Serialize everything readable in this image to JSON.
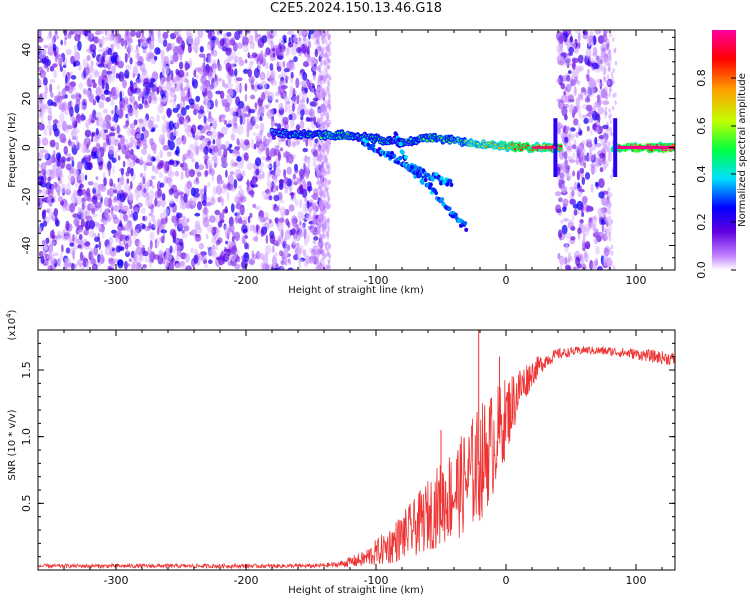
{
  "title": "C2E5.2024.150.13.46.G18",
  "chart_data": [
    {
      "type": "heatmap",
      "xlabel": "Height of straight line (km)",
      "ylabel": "Frequency (Hz)",
      "xlim": [
        -360,
        130
      ],
      "ylim": [
        -50,
        48
      ],
      "x_ticks": [
        -300,
        -200,
        -100,
        0,
        100
      ],
      "y_ticks": [
        -40,
        -20,
        0,
        20,
        40
      ],
      "colorbar": {
        "label": "Normalized spectral amplitude",
        "range": [
          0.0,
          1.0
        ],
        "ticks": [
          0.0,
          0.2,
          0.4,
          0.6,
          0.8
        ],
        "colormap": [
          "#ffffff",
          "#c080ff",
          "#6000e0",
          "#0000ff",
          "#00e0ff",
          "#00ff40",
          "#c0ff00",
          "#ffa000",
          "#ff0000",
          "#ff00a0"
        ]
      },
      "regions": [
        {
          "kind": "noise",
          "x_range": [
            -360,
            -140
          ],
          "freq_range": [
            -50,
            48
          ]
        },
        {
          "kind": "noise",
          "x_range": [
            40,
            80
          ],
          "freq_range": [
            -50,
            48
          ]
        },
        {
          "kind": "signal",
          "x_range": [
            -180,
            130
          ],
          "freq": 0
        }
      ],
      "signal_track": [
        {
          "x": -180,
          "freq": 6,
          "amp": 0.4
        },
        {
          "x": -160,
          "freq": 5.5,
          "amp": 0.48
        },
        {
          "x": -140,
          "freq": 5,
          "amp": 0.52
        },
        {
          "x": -120,
          "freq": 5,
          "amp": 0.55
        },
        {
          "x": -100,
          "freq": 3.5,
          "amp": 0.5
        },
        {
          "x": -80,
          "freq": 2,
          "amp": 0.5
        },
        {
          "x": -60,
          "freq": 4,
          "amp": 0.55
        },
        {
          "x": -40,
          "freq": 3,
          "amp": 0.6
        },
        {
          "x": -20,
          "freq": 1.5,
          "amp": 0.75
        },
        {
          "x": 0,
          "freq": 0.5,
          "amp": 0.85
        },
        {
          "x": 20,
          "freq": 0,
          "amp": 0.95
        },
        {
          "x": 38,
          "freq": 0,
          "amp": 0.9
        },
        {
          "x": 85,
          "freq": 0,
          "amp": 0.98
        },
        {
          "x": 130,
          "freq": 0,
          "amp": 0.98
        }
      ],
      "secondary_tracks": [
        [
          {
            "x": -110,
            "freq": 2
          },
          {
            "x": -90,
            "freq": -3
          },
          {
            "x": -70,
            "freq": -9
          },
          {
            "x": -55,
            "freq": -12
          },
          {
            "x": -42,
            "freq": -15
          }
        ],
        [
          {
            "x": -85,
            "freq": 6
          },
          {
            "x": -75,
            "freq": -8
          },
          {
            "x": -60,
            "freq": -15
          },
          {
            "x": -45,
            "freq": -25
          },
          {
            "x": -30,
            "freq": -33
          }
        ]
      ]
    },
    {
      "type": "line",
      "xlabel": "Height of straight line (km)",
      "ylabel": "SNR (10 * v/v)",
      "y_scale_note": "(x10",
      "y_scale_exp": "4",
      "y_scale_close": ")",
      "xlim": [
        -360,
        130
      ],
      "ylim": [
        0,
        1.8
      ],
      "x_ticks": [
        -300,
        -200,
        -100,
        0,
        100
      ],
      "y_ticks": [
        0.5,
        1.0,
        1.5
      ],
      "y_tick_labels": [
        "0.5",
        "1.0",
        "1.5"
      ],
      "color": "#ee3333",
      "series": [
        {
          "envelope": [
            {
              "x": -360,
              "mean": 0.03,
              "spread": 0.015
            },
            {
              "x": -300,
              "mean": 0.03,
              "spread": 0.015
            },
            {
              "x": -200,
              "mean": 0.03,
              "spread": 0.015
            },
            {
              "x": -150,
              "mean": 0.03,
              "spread": 0.015
            },
            {
              "x": -130,
              "mean": 0.04,
              "spread": 0.02
            },
            {
              "x": -110,
              "mean": 0.08,
              "spread": 0.06
            },
            {
              "x": -90,
              "mean": 0.18,
              "spread": 0.14
            },
            {
              "x": -70,
              "mean": 0.32,
              "spread": 0.22
            },
            {
              "x": -50,
              "mean": 0.5,
              "spread": 0.32
            },
            {
              "x": -35,
              "mean": 0.62,
              "spread": 0.38
            },
            {
              "x": -20,
              "mean": 0.8,
              "spread": 0.45
            },
            {
              "x": -10,
              "mean": 0.95,
              "spread": 0.4
            },
            {
              "x": 0,
              "mean": 1.15,
              "spread": 0.3
            },
            {
              "x": 10,
              "mean": 1.35,
              "spread": 0.18
            },
            {
              "x": 20,
              "mean": 1.48,
              "spread": 0.1
            },
            {
              "x": 30,
              "mean": 1.57,
              "spread": 0.06
            },
            {
              "x": 40,
              "mean": 1.62,
              "spread": 0.04
            },
            {
              "x": 60,
              "mean": 1.65,
              "spread": 0.03
            },
            {
              "x": 80,
              "mean": 1.64,
              "spread": 0.035
            },
            {
              "x": 100,
              "mean": 1.62,
              "spread": 0.04
            },
            {
              "x": 115,
              "mean": 1.6,
              "spread": 0.05
            },
            {
              "x": 130,
              "mean": 1.58,
              "spread": 0.05
            }
          ],
          "peaks": [
            {
              "x": -21,
              "y": 1.82
            },
            {
              "x": -50,
              "y": 1.05
            },
            {
              "x": -5,
              "y": 1.6
            }
          ]
        }
      ]
    }
  ]
}
